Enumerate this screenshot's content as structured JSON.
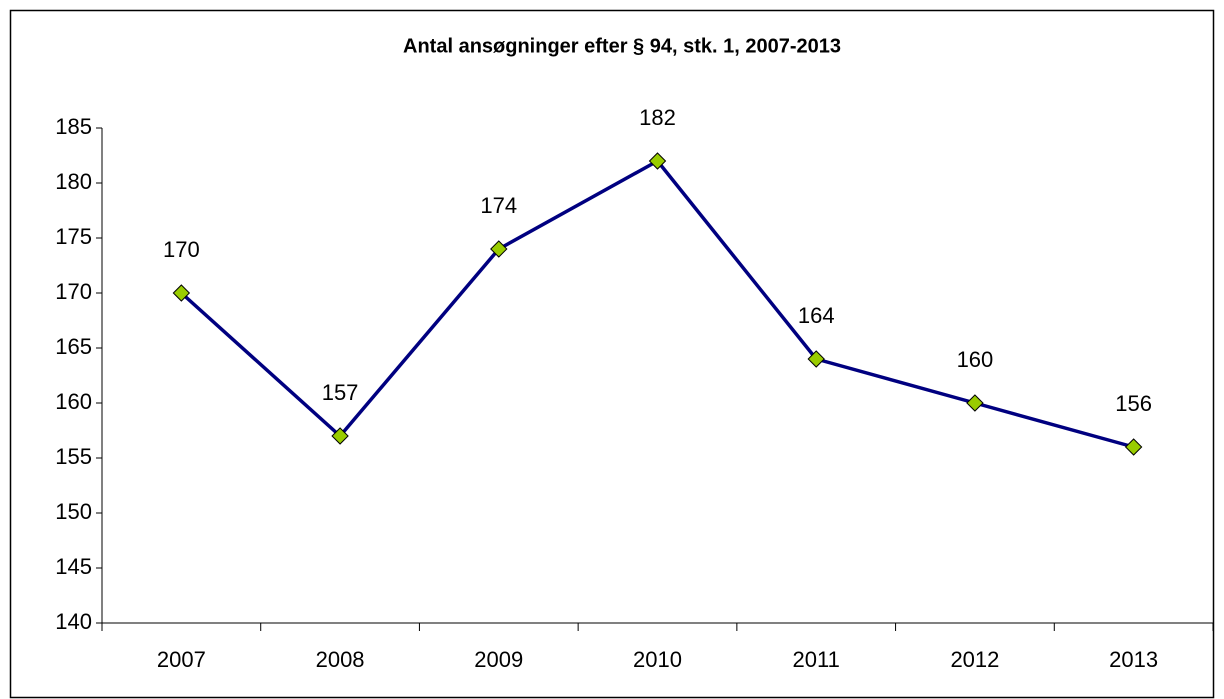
{
  "chart_data": {
    "type": "line",
    "title": "Antal ansøgninger efter § 94, stk. 1, 2007-2013",
    "categories": [
      "2007",
      "2008",
      "2009",
      "2010",
      "2011",
      "2012",
      "2013"
    ],
    "series": [
      {
        "name": "Antal ansøgninger",
        "color": "#000080",
        "marker_color": "#99cc00",
        "values": [
          170,
          157,
          174,
          182,
          164,
          160,
          156
        ]
      }
    ],
    "ylim": [
      140,
      185
    ],
    "yticks": [
      140,
      145,
      150,
      155,
      160,
      165,
      170,
      175,
      180,
      185
    ],
    "grid": false,
    "legend": false
  }
}
